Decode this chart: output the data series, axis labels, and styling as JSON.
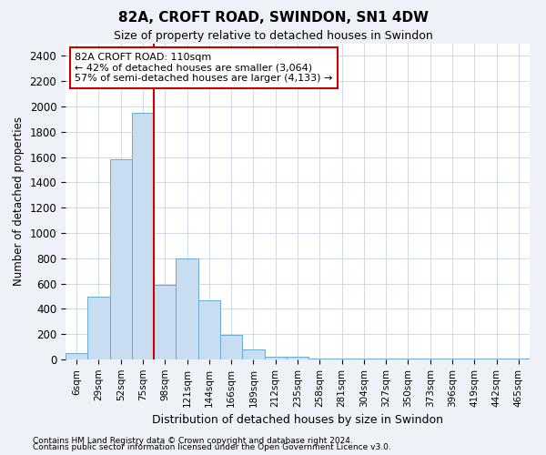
{
  "title": "82A, CROFT ROAD, SWINDON, SN1 4DW",
  "subtitle": "Size of property relative to detached houses in Swindon",
  "xlabel": "Distribution of detached houses by size in Swindon",
  "ylabel": "Number of detached properties",
  "footnote1": "Contains HM Land Registry data © Crown copyright and database right 2024.",
  "footnote2": "Contains public sector information licensed under the Open Government Licence v3.0.",
  "bar_labels": [
    "6sqm",
    "29sqm",
    "52sqm",
    "75sqm",
    "98sqm",
    "121sqm",
    "144sqm",
    "166sqm",
    "189sqm",
    "212sqm",
    "235sqm",
    "258sqm",
    "281sqm",
    "304sqm",
    "327sqm",
    "350sqm",
    "373sqm",
    "396sqm",
    "419sqm",
    "442sqm",
    "465sqm"
  ],
  "bar_values": [
    50,
    500,
    1580,
    1950,
    590,
    800,
    470,
    195,
    80,
    25,
    20,
    10,
    5,
    5,
    5,
    5,
    5,
    5,
    5,
    5,
    5
  ],
  "bar_color": "#c8ddf0",
  "bar_edge_color": "#6aaad4",
  "red_line_index": 4,
  "highlight_line_color": "#cc0000",
  "annotation_text": "82A CROFT ROAD: 110sqm\n← 42% of detached houses are smaller (3,064)\n57% of semi-detached houses are larger (4,133) →",
  "annotation_box_color": "#ffffff",
  "annotation_box_edge": "#cc0000",
  "ylim": [
    0,
    2500
  ],
  "yticks": [
    0,
    200,
    400,
    600,
    800,
    1000,
    1200,
    1400,
    1600,
    1800,
    2000,
    2200,
    2400
  ],
  "background_color": "#eef2f8",
  "plot_bg_color": "#ffffff",
  "grid_color": "#c8d4e8"
}
